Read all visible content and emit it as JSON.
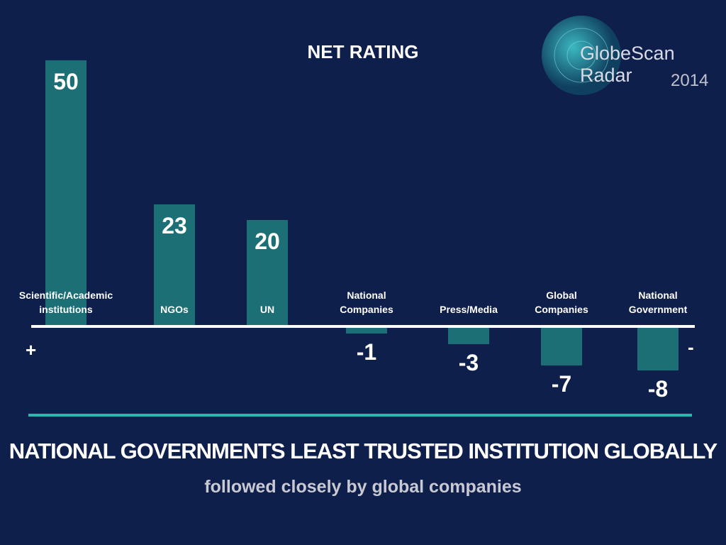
{
  "chart_data": {
    "type": "bar",
    "title": "NET RATING",
    "categories": [
      "Scientific/Academic institutions",
      "NGOs",
      "UN",
      "National Companies",
      "Press/Media",
      "Global Companies",
      "National Government"
    ],
    "values": [
      50,
      23,
      20,
      -1,
      -3,
      -7,
      -8
    ],
    "color": "#1b6f75",
    "positive_marker": "+",
    "negative_marker": "-"
  },
  "headline": "NATIONAL GOVERNMENTS LEAST TRUSTED INSTITUTION GLOBALLY",
  "subtitle": "followed closely by global companies",
  "logo": {
    "name": "GlobeScan Radar",
    "year": "2014"
  }
}
